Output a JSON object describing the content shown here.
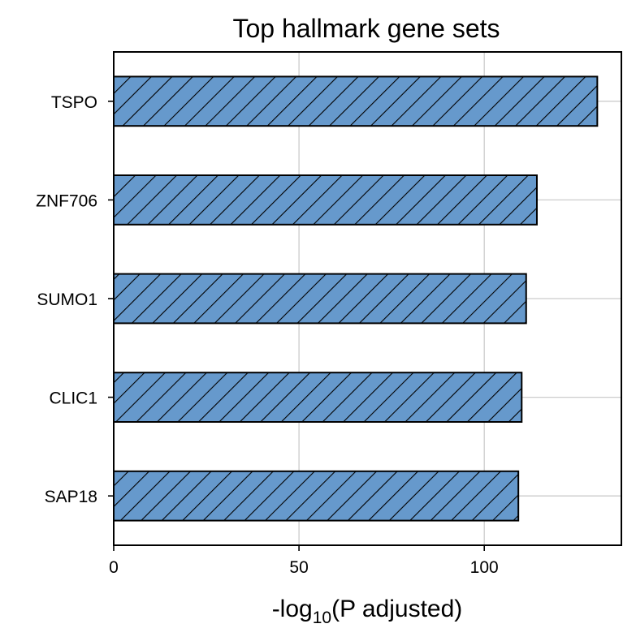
{
  "chart_data": {
    "type": "bar",
    "orientation": "horizontal",
    "title": "Top hallmark gene sets",
    "xlabel": {
      "prefix": "-log",
      "subscript": "10",
      "suffix": "(P adjusted)"
    },
    "ylabel": "",
    "categories": [
      "TSPO",
      "ZNF706",
      "SUMO1",
      "CLIC1",
      "SAP18"
    ],
    "values": [
      130.5,
      114.2,
      111.3,
      110.1,
      109.2
    ],
    "xlim": [
      0,
      137
    ],
    "xticks": [
      0,
      50,
      100
    ],
    "grid": true,
    "colors": {
      "bar_fill": "#6699cc",
      "bar_edge": "#000000",
      "grid": "#cccccc",
      "hatch": "#000000"
    },
    "hatch": "diagonal"
  }
}
